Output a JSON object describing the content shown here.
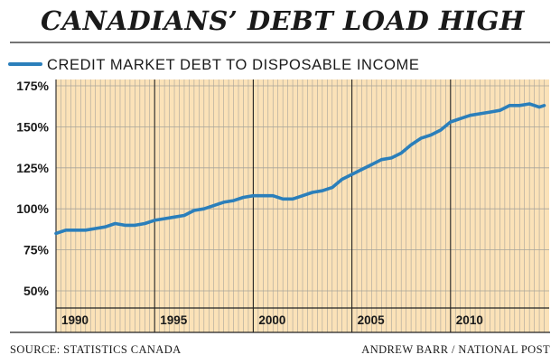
{
  "title": "CANADIANS’ DEBT LOAD HIGH",
  "legend_label": "CREDIT MARKET DEBT TO DISPOSABLE INCOME",
  "source": "SOURCE: STATISTICS CANADA",
  "credit": "ANDREW BARR / NATIONAL POST",
  "colors": {
    "background": "#fbe2b8",
    "line": "#2b7fbb",
    "gridline": "#a8a49a",
    "rule": "#222222"
  },
  "chart_data": {
    "type": "line",
    "title": "CANADIANS’ DEBT LOAD HIGH",
    "xlabel": "",
    "ylabel": "",
    "ylim": [
      50,
      175
    ],
    "xlim": [
      1989,
      2014
    ],
    "grid": true,
    "legend_position": "top-left",
    "yticks": [
      50,
      75,
      100,
      125,
      150,
      175
    ],
    "ytick_labels": [
      "50%",
      "75%",
      "100%",
      "125%",
      "150%",
      "175%"
    ],
    "xtick_labels": [
      {
        "year": 1990,
        "label": "1990"
      },
      {
        "year": 1995,
        "label": "1995"
      },
      {
        "year": 2000,
        "label": "2000"
      },
      {
        "year": 2005,
        "label": "2005"
      },
      {
        "year": 2010,
        "label": "2010"
      }
    ],
    "series": [
      {
        "name": "CREDIT MARKET DEBT TO DISPOSABLE INCOME",
        "x": [
          1989.0,
          1989.5,
          1990.0,
          1990.5,
          1991.0,
          1991.5,
          1992.0,
          1992.5,
          1993.0,
          1993.5,
          1994.0,
          1994.5,
          1995.0,
          1995.5,
          1996.0,
          1996.5,
          1997.0,
          1997.5,
          1998.0,
          1998.5,
          1999.0,
          1999.5,
          2000.0,
          2000.5,
          2001.0,
          2001.5,
          2002.0,
          2002.5,
          2003.0,
          2003.5,
          2004.0,
          2004.5,
          2005.0,
          2005.5,
          2006.0,
          2006.5,
          2007.0,
          2007.5,
          2008.0,
          2008.5,
          2009.0,
          2009.5,
          2010.0,
          2010.5,
          2011.0,
          2011.5,
          2012.0,
          2012.5,
          2013.0,
          2013.5,
          2013.75
        ],
        "values": [
          85,
          87,
          87,
          87,
          88,
          89,
          91,
          90,
          90,
          91,
          93,
          94,
          95,
          96,
          99,
          100,
          102,
          104,
          105,
          107,
          108,
          108,
          108,
          106,
          106,
          108,
          110,
          111,
          113,
          118,
          121,
          124,
          127,
          130,
          131,
          134,
          139,
          143,
          145,
          148,
          153,
          155,
          157,
          158,
          159,
          160,
          163,
          163,
          164,
          162,
          163
        ]
      }
    ]
  }
}
